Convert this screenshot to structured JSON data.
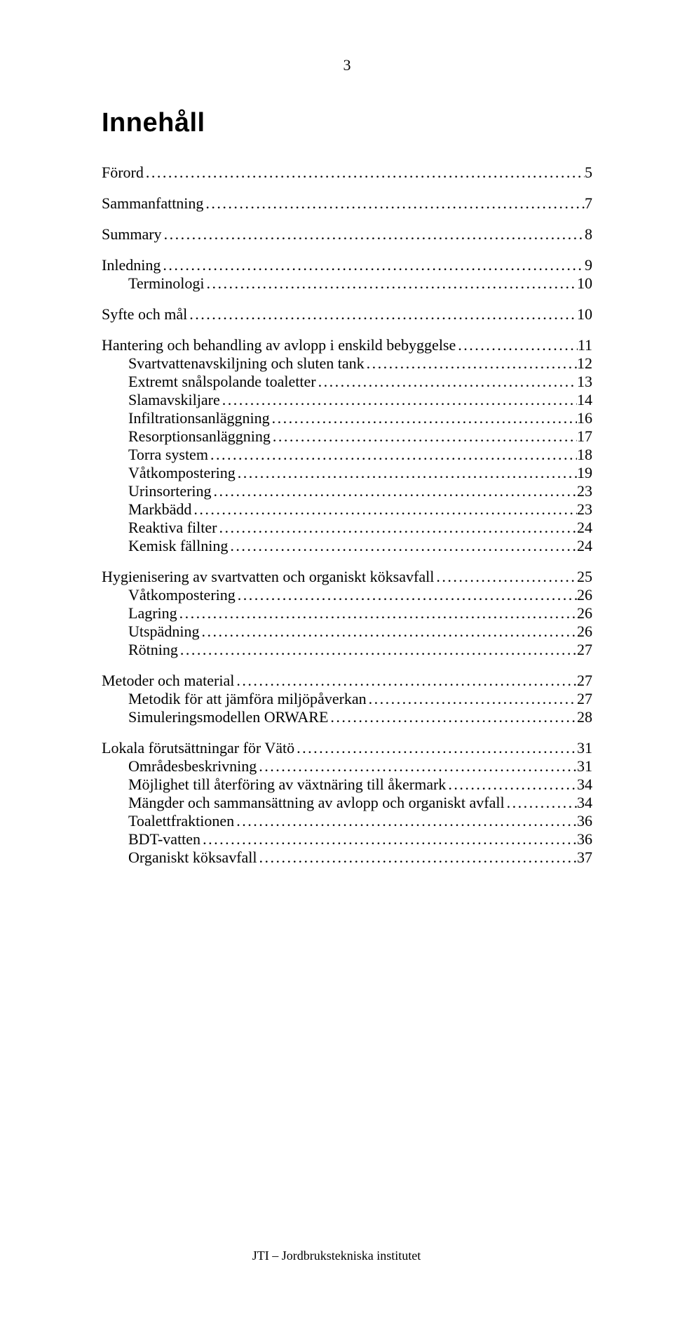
{
  "page_number": "3",
  "title": "Innehåll",
  "footer": "JTI – Jordbrukstekniska institutet",
  "text_color": "#000000",
  "background_color": "#ffffff",
  "title_font": "Arial",
  "body_font": "Times New Roman",
  "title_fontsize_pt": 28,
  "body_fontsize_pt": 16,
  "toc": [
    {
      "level": 0,
      "title": "Förord",
      "page": "5"
    },
    {
      "level": 0,
      "title": "Sammanfattning",
      "page": "7"
    },
    {
      "level": 0,
      "title": "Summary",
      "page": "8"
    },
    {
      "level": 0,
      "title": "Inledning",
      "page": "9"
    },
    {
      "level": 1,
      "title": "Terminologi",
      "page": "10"
    },
    {
      "level": 0,
      "title": "Syfte och mål",
      "page": "10"
    },
    {
      "level": 0,
      "title": "Hantering och behandling av avlopp i enskild bebyggelse",
      "page": "11"
    },
    {
      "level": 1,
      "title": "Svartvattenavskiljning och sluten tank",
      "page": "12"
    },
    {
      "level": 1,
      "title": "Extremt snålspolande toaletter",
      "page": "13"
    },
    {
      "level": 1,
      "title": "Slamavskiljare",
      "page": "14"
    },
    {
      "level": 1,
      "title": "Infiltrationsanläggning",
      "page": "16"
    },
    {
      "level": 1,
      "title": "Resorptionsanläggning",
      "page": "17"
    },
    {
      "level": 1,
      "title": "Torra system",
      "page": "18"
    },
    {
      "level": 1,
      "title": "Våtkompostering",
      "page": "19"
    },
    {
      "level": 1,
      "title": "Urinsortering",
      "page": "23"
    },
    {
      "level": 1,
      "title": "Markbädd",
      "page": "23"
    },
    {
      "level": 1,
      "title": "Reaktiva filter",
      "page": "24"
    },
    {
      "level": 1,
      "title": "Kemisk fällning",
      "page": "24"
    },
    {
      "level": 0,
      "title": "Hygienisering av svartvatten och organiskt köksavfall",
      "page": "25"
    },
    {
      "level": 1,
      "title": "Våtkompostering",
      "page": "26"
    },
    {
      "level": 1,
      "title": "Lagring",
      "page": "26"
    },
    {
      "level": 1,
      "title": "Utspädning",
      "page": "26"
    },
    {
      "level": 1,
      "title": "Rötning",
      "page": "27"
    },
    {
      "level": 0,
      "title": "Metoder och material",
      "page": "27"
    },
    {
      "level": 1,
      "title": "Metodik för att jämföra miljöpåverkan",
      "page": "27"
    },
    {
      "level": 1,
      "title": "Simuleringsmodellen ORWARE",
      "page": "28"
    },
    {
      "level": 0,
      "title": "Lokala förutsättningar för Vätö",
      "page": "31"
    },
    {
      "level": 1,
      "title": "Områdesbeskrivning",
      "page": "31"
    },
    {
      "level": 1,
      "title": "Möjlighet till återföring av växtnäring till åkermark",
      "page": "34"
    },
    {
      "level": 1,
      "title": "Mängder och sammansättning av avlopp och organiskt avfall",
      "page": "34"
    },
    {
      "level": 1,
      "title": "Toalettfraktionen",
      "page": "36"
    },
    {
      "level": 1,
      "title": "BDT-vatten",
      "page": "36"
    },
    {
      "level": 1,
      "title": "Organiskt köksavfall",
      "page": "37"
    }
  ]
}
